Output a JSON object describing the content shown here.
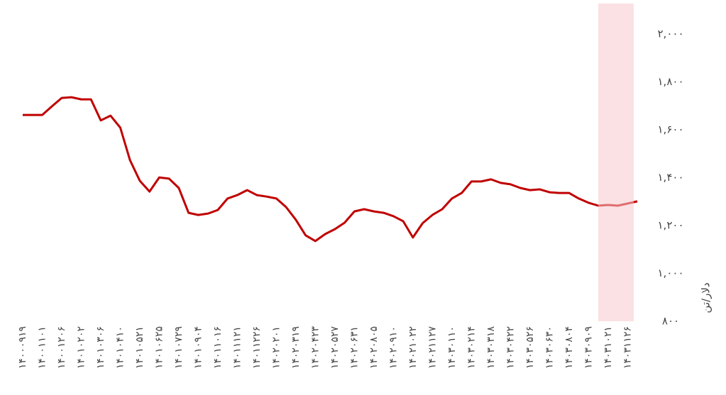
{
  "chart_data": {
    "type": "line",
    "y_label": "دلار/تن",
    "categories": [
      "۱۴۰۰۰۹۱۹",
      null,
      "۱۴۰۰۱۱۰۱",
      null,
      "۱۴۰۰۱۲۰۶",
      null,
      "۱۴۰۱۰۲۰۲",
      null,
      "۱۴۰۱۰۳۰۶",
      null,
      "۱۴۰۱۰۴۱۰",
      null,
      "۱۴۰۱۰۵۲۱",
      null,
      "۱۴۰۱۰۶۲۵",
      null,
      "۱۴۰۱۰۷۲۹",
      null,
      "۱۴۰۱۰۹۰۴",
      null,
      "۱۴۰۱۱۰۱۶",
      null,
      "۱۴۰۱۱۱۲۱",
      null,
      "۱۴۰۱۱۲۲۶",
      null,
      "۱۴۰۲۰۲۰۱",
      null,
      "۱۴۰۲۰۳۱۹",
      null,
      "۱۴۰۲۰۴۲۳",
      null,
      "۱۴۰۲۰۵۲۷",
      null,
      "۱۴۰۲۰۶۳۱",
      null,
      "۱۴۰۲۰۸۰۵",
      null,
      "۱۴۰۲۰۹۱۰",
      null,
      "۱۴۰۲۱۰۲۲",
      null,
      "۱۴۰۲۱۱۲۷",
      null,
      "۱۴۰۳۰۱۱۰",
      null,
      "۱۴۰۳۰۲۱۴",
      null,
      "۱۴۰۳۰۳۱۸",
      null,
      "۱۴۰۳۰۴۲۲",
      null,
      "۱۴۰۳۰۵۲۶",
      null,
      "۱۴۰۳۰۶۳۰",
      null,
      "۱۴۰۳۰۸۰۴",
      null,
      "۱۴۰۳۰۹۰۹",
      null,
      "۱۴۰۳۱۰۲۱",
      null,
      "۱۴۰۳۱۱۲۶",
      null
    ],
    "values": [
      1662,
      1662,
      1662,
      1698,
      1733,
      1736,
      1727,
      1727,
      1639,
      1659,
      1609,
      1473,
      1387,
      1342,
      1401,
      1396,
      1357,
      1253,
      1244,
      1250,
      1265,
      1313,
      1327,
      1348,
      1327,
      1321,
      1313,
      1277,
      1224,
      1159,
      1135,
      1164,
      1185,
      1212,
      1259,
      1268,
      1259,
      1253,
      1239,
      1218,
      1150,
      1210,
      1244,
      1268,
      1313,
      1336,
      1384,
      1384,
      1393,
      1378,
      1372,
      1357,
      1348,
      1351,
      1339,
      1336,
      1336,
      1313,
      1295,
      1283,
      1286,
      1283,
      1292,
      1301
    ],
    "color": "#c00000",
    "ylim": [
      800,
      2000
    ],
    "yticks": [
      {
        "value": 800,
        "label": "۸۰۰"
      },
      {
        "value": 1000,
        "label": "۱,۰۰۰"
      },
      {
        "value": 1200,
        "label": "۱,۲۰۰"
      },
      {
        "value": 1400,
        "label": "۱,۴۰۰"
      },
      {
        "value": 1600,
        "label": "۱,۶۰۰"
      },
      {
        "value": 1800,
        "label": "۱,۸۰۰"
      },
      {
        "value": 2000,
        "label": "۲,۰۰۰"
      }
    ],
    "grid": false
  }
}
